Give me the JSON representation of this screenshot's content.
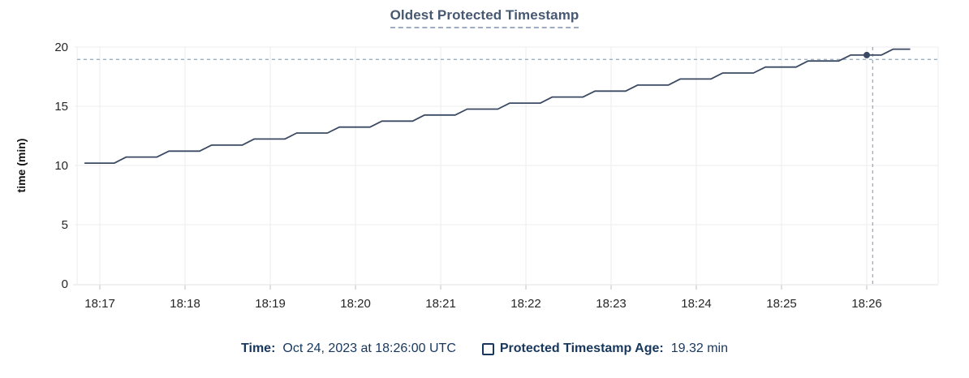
{
  "colors": {
    "title": "#475872",
    "title-underline": "#9fadc2",
    "legend": "#17375c",
    "line": "#3b4a63",
    "crosshair": "#9db0bf",
    "grid": "#f0f0f0",
    "axis": "#e6e6e6",
    "tick": "#cfcfcf",
    "tick-text": "#262626"
  },
  "chart_data": {
    "type": "line",
    "title": "Oldest Protected Timestamp",
    "xlabel": "",
    "ylabel": "time (min)",
    "ylim": [
      0,
      20
    ],
    "xlim_minutes_after_1800": [
      16.733,
      26.838
    ],
    "grid": true,
    "y_ticks": [
      0,
      5,
      10,
      15,
      20
    ],
    "x_ticks_minutes_after_1800": [
      17,
      18,
      19,
      20,
      21,
      22,
      23,
      24,
      25,
      26
    ],
    "x_tick_labels": [
      "18:17",
      "18:18",
      "18:19",
      "18:20",
      "18:21",
      "18:22",
      "18:23",
      "18:24",
      "18:25",
      "18:26"
    ],
    "series": [
      {
        "name": "Protected Timestamp Age",
        "unit": "min",
        "color": "#3b4a63",
        "points": [
          [
            16.82,
            10.2
          ],
          [
            17.17,
            10.2
          ],
          [
            17.31,
            10.71
          ],
          [
            17.67,
            10.71
          ],
          [
            17.81,
            11.21
          ],
          [
            18.17,
            11.21
          ],
          [
            18.31,
            11.72
          ],
          [
            18.67,
            11.72
          ],
          [
            18.81,
            12.23
          ],
          [
            19.17,
            12.23
          ],
          [
            19.31,
            12.74
          ],
          [
            19.67,
            12.74
          ],
          [
            19.81,
            13.24
          ],
          [
            20.17,
            13.24
          ],
          [
            20.31,
            13.75
          ],
          [
            20.67,
            13.75
          ],
          [
            20.81,
            14.26
          ],
          [
            21.17,
            14.26
          ],
          [
            21.31,
            14.76
          ],
          [
            21.67,
            14.76
          ],
          [
            21.81,
            15.27
          ],
          [
            22.17,
            15.27
          ],
          [
            22.31,
            15.78
          ],
          [
            22.67,
            15.78
          ],
          [
            22.81,
            16.28
          ],
          [
            23.17,
            16.28
          ],
          [
            23.31,
            16.79
          ],
          [
            23.67,
            16.79
          ],
          [
            23.81,
            17.3
          ],
          [
            24.17,
            17.3
          ],
          [
            24.31,
            17.81
          ],
          [
            24.67,
            17.81
          ],
          [
            24.81,
            18.31
          ],
          [
            25.17,
            18.31
          ],
          [
            25.31,
            18.82
          ],
          [
            25.67,
            18.82
          ],
          [
            25.81,
            19.32
          ],
          [
            26.17,
            19.32
          ],
          [
            26.31,
            19.82
          ],
          [
            26.51,
            19.82
          ]
        ]
      }
    ],
    "hover": {
      "point_t_minutes_after_1800": 26.0,
      "point_value": 19.32,
      "cursor_t_minutes_after_1800": 26.07,
      "cursor_value": 18.95,
      "time_label": "Oct 24, 2023 at 18:26:00 UTC",
      "value_label": "19.32 min"
    },
    "legend_position": "bottom-center"
  },
  "legend": {
    "time_label": "Time:",
    "time_value": "Oct 24, 2023 at 18:26:00 UTC",
    "series_label": "Protected Timestamp Age:",
    "series_value": "19.32 min"
  }
}
